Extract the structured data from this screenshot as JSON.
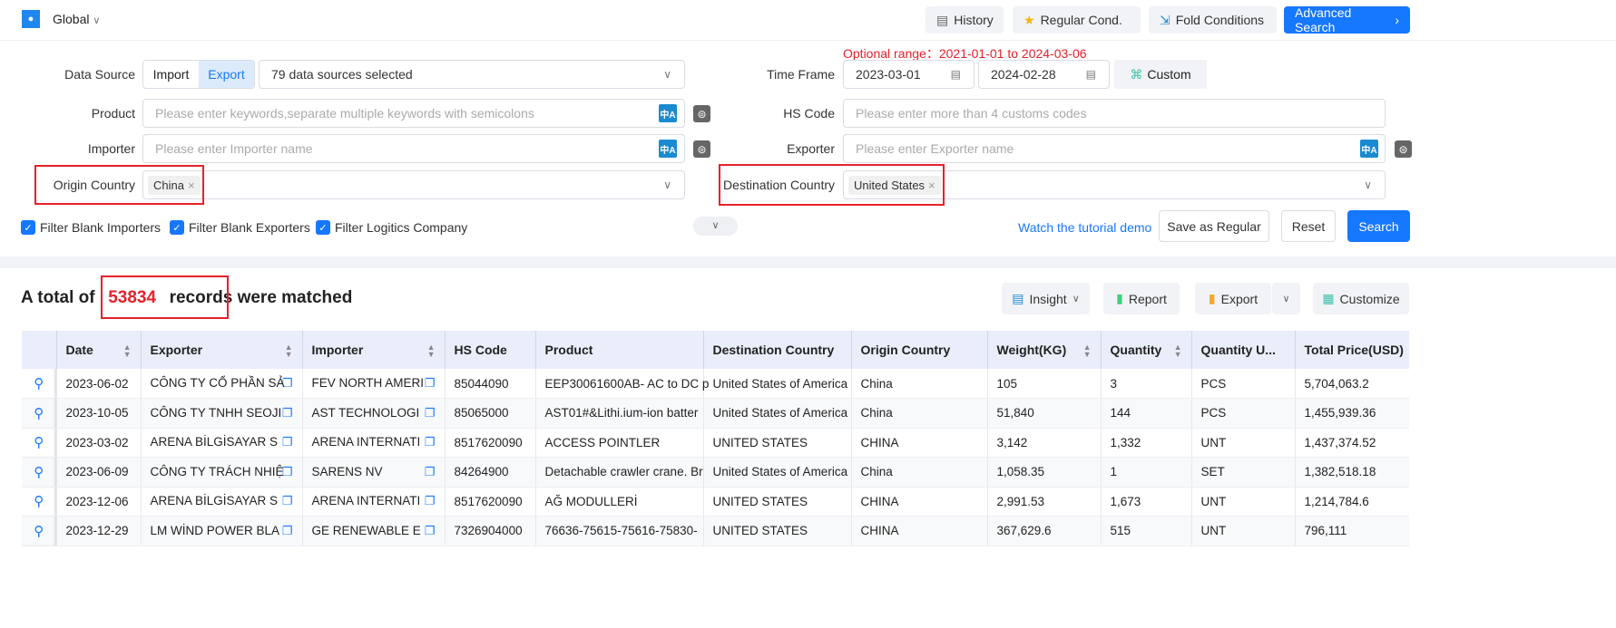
{
  "topbar": {
    "region": "Global",
    "history": "History",
    "regular": "Regular Cond.",
    "fold": "Fold Conditions",
    "advanced": "Advanced Search"
  },
  "form": {
    "optional_range": "Optional range：2021-01-01 to 2024-03-06",
    "data_source_label": "Data Source",
    "import": "Import",
    "export": "Export",
    "data_sources": "79 data sources selected",
    "time_frame_label": "Time Frame",
    "date_from": "2023-03-01",
    "date_to": "2024-02-28",
    "custom": "Custom",
    "product_label": "Product",
    "product_placeholder": "Please enter keywords,separate multiple keywords with semicolons",
    "hs_label": "HS Code",
    "hs_placeholder": "Please enter more than 4 customs codes",
    "importer_label": "Importer",
    "importer_placeholder": "Please enter Importer name",
    "exporter_label": "Exporter",
    "exporter_placeholder": "Please enter Exporter name",
    "origin_label": "Origin Country",
    "origin_tag": "China",
    "dest_label": "Destination Country",
    "dest_tag": "United States",
    "filters": [
      "Filter Blank Importers",
      "Filter Blank Exporters",
      "Filter Logitics Company"
    ],
    "tutorial": "Watch the tutorial demo",
    "save_regular": "Save as Regular",
    "reset": "Reset",
    "search": "Search"
  },
  "results": {
    "prefix": "A total of",
    "count": "53834",
    "suffix1": "records",
    "suffix2": "were matched",
    "insight": "Insight",
    "report": "Report",
    "export": "Export",
    "customize": "Customize"
  },
  "table": {
    "columns": [
      "",
      "Date",
      "Exporter",
      "Importer",
      "HS Code",
      "Product",
      "Destination Country",
      "Origin Country",
      "Weight(KG)",
      "Quantity",
      "Quantity U...",
      "Total Price(USD)"
    ],
    "rows": [
      [
        "2023-06-02",
        "CÔNG TY CỔ PHẦN SẢ",
        "FEV NORTH AMERI",
        "85044090",
        "EEP30061600AB- AC to DC p",
        "United States of America",
        "China",
        "105",
        "3",
        "PCS",
        "5,704,063.2"
      ],
      [
        "2023-10-05",
        "CÔNG TY TNHH SEOJI",
        "AST TECHNOLOGI",
        "85065000",
        "AST01#&Lithi.ium-ion batter",
        "United States of America",
        "China",
        "51,840",
        "144",
        "PCS",
        "1,455,939.36"
      ],
      [
        "2023-03-02",
        "ARENA BİLGİSAYAR S",
        "ARENA INTERNATI",
        "8517620090",
        "ACCESS POINTLER",
        "UNITED STATES",
        "CHINA",
        "3,142",
        "1,332",
        "UNT",
        "1,437,374.52"
      ],
      [
        "2023-06-09",
        "CÔNG TY TRÁCH NHIỆ",
        "SARENS NV",
        "84264900",
        "Detachable crawler crane. Br",
        "United States of America",
        "China",
        "1,058.35",
        "1",
        "SET",
        "1,382,518.18"
      ],
      [
        "2023-12-06",
        "ARENA BİLGİSAYAR S",
        "ARENA INTERNATI",
        "8517620090",
        "AĞ MODULLERİ",
        "UNITED STATES",
        "CHINA",
        "2,991.53",
        "1,673",
        "UNT",
        "1,214,784.6"
      ],
      [
        "2023-12-29",
        "LM WİND POWER BLA",
        "GE RENEWABLE E",
        "7326904000",
        "76636-75615-75616-75830-",
        "UNITED STATES",
        "CHINA",
        "367,629.6",
        "515",
        "UNT",
        "796,111"
      ]
    ]
  },
  "colors": {
    "accent": "#1677ff",
    "highlight": "#e8202a"
  }
}
